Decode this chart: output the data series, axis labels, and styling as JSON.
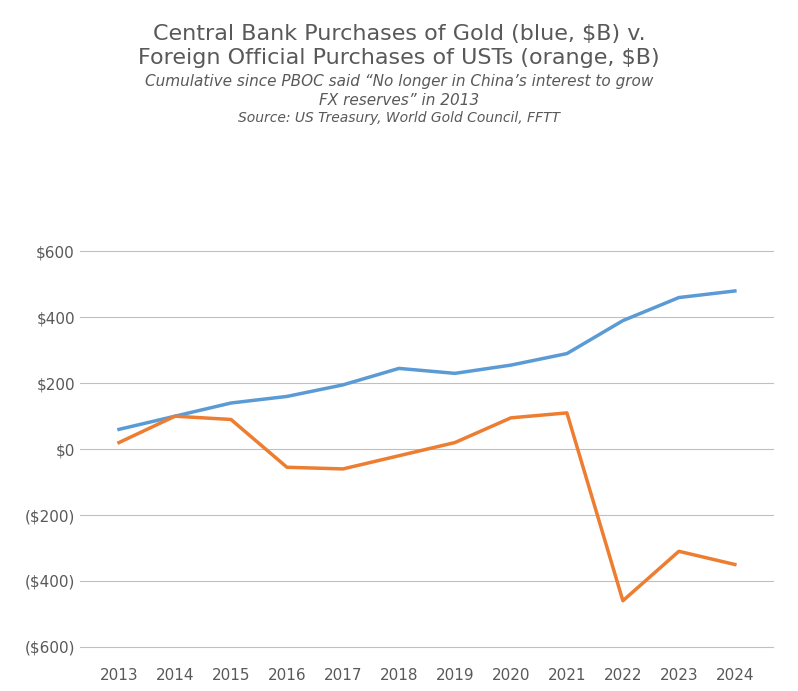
{
  "title_line1": "Central Bank Purchases of Gold (blue, $B) v.",
  "title_line2": "Foreign Official Purchases of USTs (orange, $B)",
  "subtitle_line1": "Cumulative since PBOC said “No longer in China’s interest to grow",
  "subtitle_line2": "FX reserves” in 2013",
  "source": "Source: US Treasury, World Gold Council, FFTT",
  "years": [
    2013,
    2014,
    2015,
    2016,
    2017,
    2018,
    2019,
    2020,
    2021,
    2022,
    2023,
    2024
  ],
  "gold": [
    60,
    100,
    140,
    160,
    195,
    245,
    230,
    255,
    290,
    390,
    460,
    480
  ],
  "ust": [
    20,
    100,
    90,
    -55,
    -60,
    -20,
    20,
    95,
    110,
    -460,
    -310,
    -350
  ],
  "gold_color": "#5B9BD5",
  "ust_color": "#ED7D31",
  "background_color": "#FFFFFF",
  "grid_color": "#C0C0C0",
  "text_color": "#595959",
  "yticks": [
    -600,
    -400,
    -200,
    0,
    200,
    400,
    600
  ],
  "ylim": [
    -650,
    650
  ],
  "line_width": 2.5
}
